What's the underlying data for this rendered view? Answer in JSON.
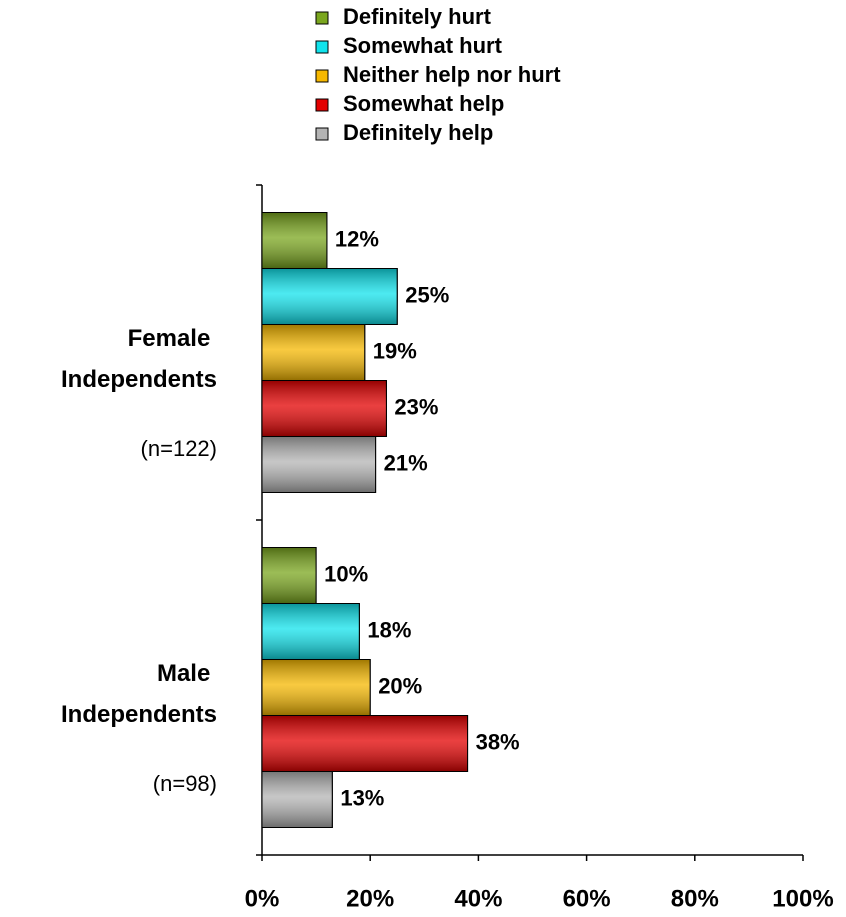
{
  "chart_data": {
    "type": "hbar",
    "categories": [
      "Female Independents",
      "Male Independents"
    ],
    "sample_sizes": [
      "(n=122)",
      "(n=98)"
    ],
    "series": [
      {
        "name": "Definitely hurt",
        "color": "#7aa61e",
        "values": [
          12,
          10
        ],
        "value_labels": [
          "12%",
          "10%"
        ]
      },
      {
        "name": "Somewhat hurt",
        "color": "#11e3ec",
        "values": [
          25,
          18
        ],
        "value_labels": [
          "25%",
          "18%"
        ]
      },
      {
        "name": "Neither help nor hurt",
        "color": "#f6b800",
        "values": [
          19,
          20
        ],
        "value_labels": [
          "19%",
          "20%"
        ]
      },
      {
        "name": "Somewhat help",
        "color": "#e30000",
        "values": [
          23,
          38
        ],
        "value_labels": [
          "23%",
          "38%"
        ]
      },
      {
        "name": "Definitely help",
        "color": "#b4b4b4",
        "values": [
          21,
          13
        ],
        "value_labels": [
          "21%",
          "13%"
        ]
      }
    ],
    "xlim": [
      0,
      100
    ],
    "xticks": [
      {
        "value": 0,
        "label": "0%"
      },
      {
        "value": 20,
        "label": "20%"
      },
      {
        "value": 40,
        "label": "40%"
      },
      {
        "value": 60,
        "label": "60%"
      },
      {
        "value": 80,
        "label": "80%"
      },
      {
        "value": 100,
        "label": "100%"
      }
    ],
    "legend": "top"
  }
}
